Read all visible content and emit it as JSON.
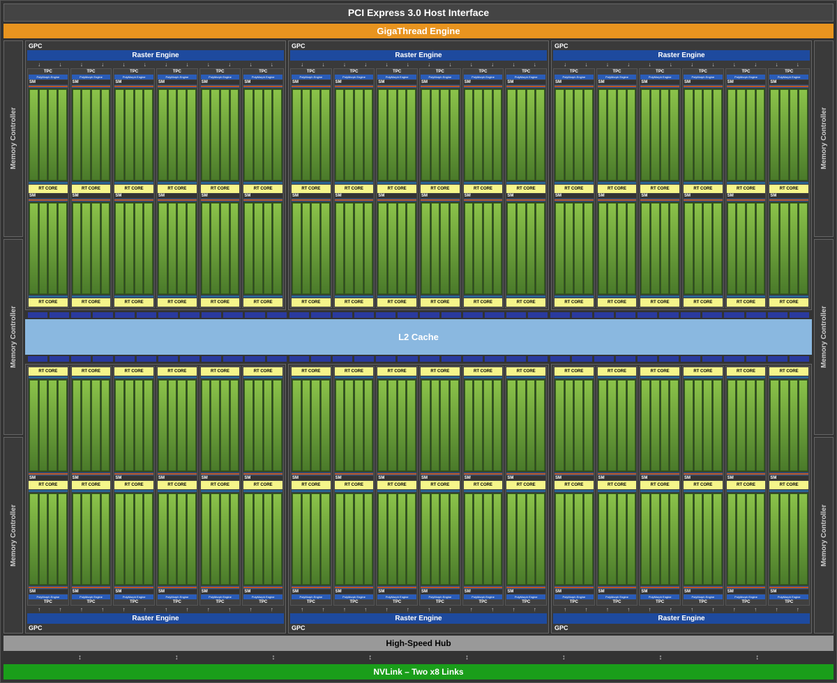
{
  "pci_label": "PCI Express 3.0 Host Interface",
  "gigathread_label": "GigaThread Engine",
  "gigathread_color": "#e8941f",
  "mc_label": "Memory Controller",
  "mc_count_per_side": 3,
  "gpc": {
    "label": "GPC",
    "raster_label": "Raster Engine",
    "raster_color": "#1e4a9e",
    "tpc_count": 6,
    "tpc_label": "TPC",
    "polymorph_label": "PolyMorph Engine",
    "polymorph_color": "#2a5cb8",
    "sm_label": "SM",
    "sm_per_tpc": 2,
    "rt_core_label": "RT CORE",
    "rt_core_color": "#f5f58a",
    "core_color": "#6aaa3a",
    "core_cols": 4,
    "bar_orange": "#c0571f",
    "bar_teal": "#2a7a8a"
  },
  "l2": {
    "label": "L2 Cache",
    "color": "#8ab8e0",
    "dot_color": "#2a3a9e",
    "dots_per_group": 12,
    "groups": 3
  },
  "hs_hub_label": "High-Speed Hub",
  "hs_hub_color": "#999",
  "nvlink_label": "NVLink – Two x8 Links",
  "nvlink_color": "#1a9e1a",
  "gpc_rows": 2,
  "gpc_cols": 3
}
